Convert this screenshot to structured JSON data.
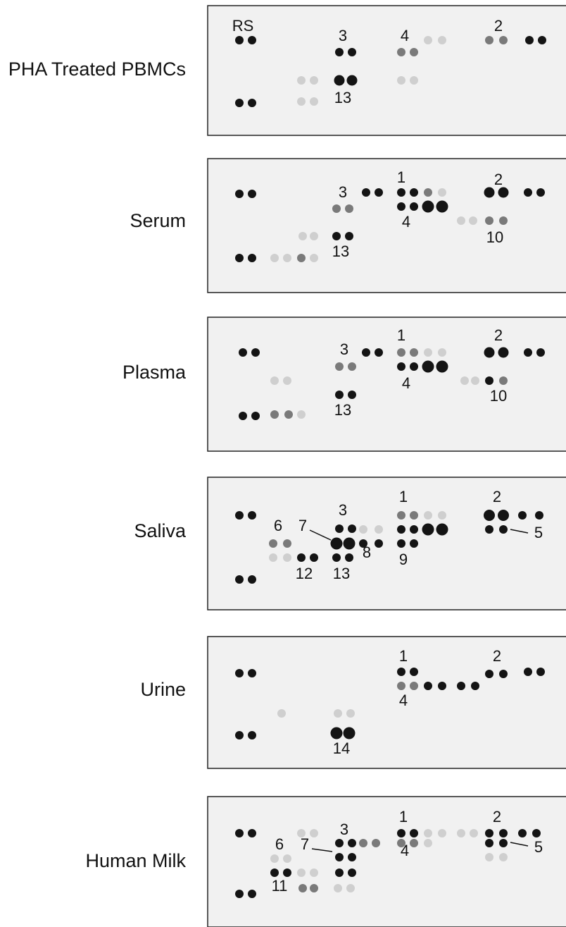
{
  "panels": [
    {
      "label": "PHA Treated PBMCs",
      "annotations": [
        "RS",
        "3",
        "4",
        "2",
        "13"
      ]
    },
    {
      "label": "Serum",
      "annotations": [
        "1",
        "3",
        "2",
        "4",
        "10",
        "13"
      ]
    },
    {
      "label": "Plasma",
      "annotations": [
        "1",
        "3",
        "2",
        "4",
        "10",
        "13"
      ]
    },
    {
      "label": "Saliva",
      "annotations": [
        "1",
        "3",
        "2",
        "6",
        "7",
        "5",
        "8",
        "9",
        "12",
        "13"
      ]
    },
    {
      "label": "Urine",
      "annotations": [
        "1",
        "2",
        "4",
        "14"
      ]
    },
    {
      "label": "Human Milk",
      "annotations": [
        "1",
        "3",
        "2",
        "6",
        "7",
        "4",
        "5",
        "11"
      ]
    }
  ]
}
